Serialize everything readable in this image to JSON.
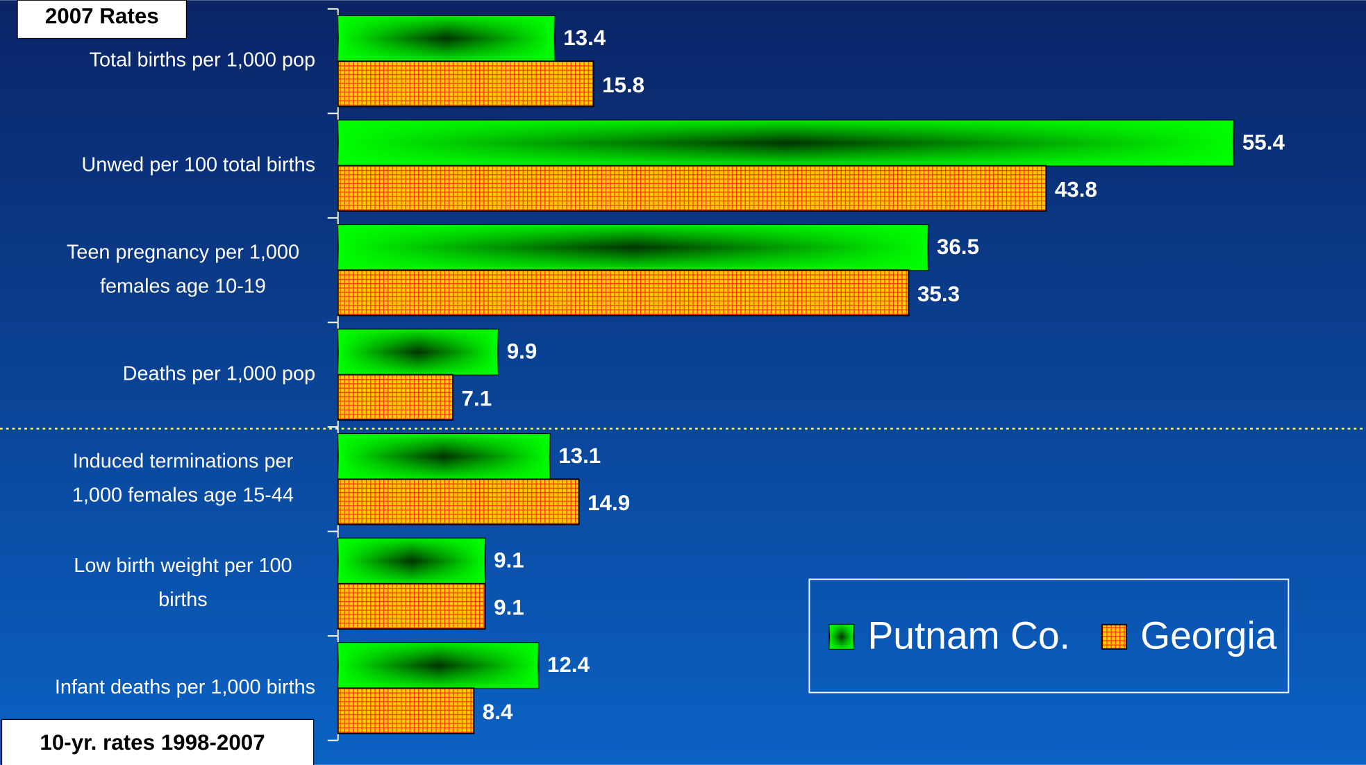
{
  "chart_data": {
    "type": "bar",
    "orientation": "horizontal",
    "categories": [
      [
        "Total births per 1,000 pop"
      ],
      [
        "Unwed per 100 total births"
      ],
      [
        "Teen pregnancy per 1,000",
        "females age 10-19"
      ],
      [
        "Deaths per 1,000 pop"
      ],
      [
        "Induced terminations per",
        "1,000 females age 15-44"
      ],
      [
        "Low birth weight per 100",
        "births"
      ],
      [
        "Infant deaths per 1,000 births"
      ]
    ],
    "series": [
      {
        "name": "Putnam Co.",
        "color": "#00ff00",
        "values": [
          13.4,
          55.4,
          36.5,
          9.9,
          13.1,
          9.1,
          12.4
        ]
      },
      {
        "name": "Georgia",
        "color": "#ffcc00",
        "values": [
          15.8,
          43.8,
          35.3,
          7.1,
          14.9,
          9.1,
          8.4
        ]
      }
    ],
    "xlim": [
      0,
      60
    ],
    "annotations": [
      "2007 Rates",
      "10-yr. rates 1998-2007"
    ],
    "legend": "bottom-right"
  }
}
